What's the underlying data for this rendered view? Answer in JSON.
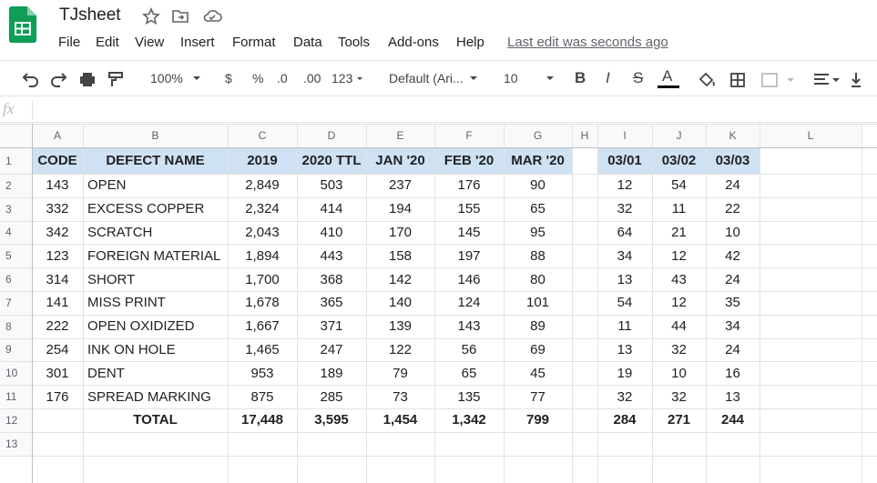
{
  "header": {
    "title": "TJsheet",
    "menu": [
      "File",
      "Edit",
      "View",
      "Insert",
      "Format",
      "Data",
      "Tools",
      "Add-ons",
      "Help"
    ],
    "last_edit": "Last edit was seconds ago"
  },
  "toolbar": {
    "zoom": "100%",
    "currency": "$",
    "percent": "%",
    "decrease_decimal": ".0",
    "increase_decimal": ".00",
    "number_format": "123",
    "font": "Default (Ari...",
    "font_size": "10",
    "bold": "B",
    "italic": "I",
    "strikethrough": "S",
    "text_color": "A"
  },
  "formula_bar": {
    "label": "fx"
  },
  "sheet": {
    "columns": [
      "A",
      "B",
      "C",
      "D",
      "E",
      "F",
      "G",
      "H",
      "I",
      "J",
      "K",
      "L"
    ],
    "row_numbers": [
      1,
      2,
      3,
      4,
      5,
      6,
      7,
      8,
      9,
      10,
      11,
      12,
      13
    ]
  },
  "table": {
    "header": [
      "CODE",
      "DEFECT NAME",
      "2019",
      "2020 TTL",
      "JAN '20",
      "FEB '20",
      "MAR '20",
      "03/01",
      "03/02",
      "03/03"
    ],
    "rows": [
      [
        "143",
        "OPEN",
        "2,849",
        "503",
        "237",
        "176",
        "90",
        "12",
        "54",
        "24"
      ],
      [
        "332",
        "EXCESS COPPER",
        "2,324",
        "414",
        "194",
        "155",
        "65",
        "32",
        "11",
        "22"
      ],
      [
        "342",
        "SCRATCH",
        "2,043",
        "410",
        "170",
        "145",
        "95",
        "64",
        "21",
        "10"
      ],
      [
        "123",
        "FOREIGN MATERIAL",
        "1,894",
        "443",
        "158",
        "197",
        "88",
        "34",
        "12",
        "42"
      ],
      [
        "314",
        "SHORT",
        "1,700",
        "368",
        "142",
        "146",
        "80",
        "13",
        "43",
        "24"
      ],
      [
        "141",
        "MISS PRINT",
        "1,678",
        "365",
        "140",
        "124",
        "101",
        "54",
        "12",
        "35"
      ],
      [
        "222",
        "OPEN OXIDIZED",
        "1,667",
        "371",
        "139",
        "143",
        "89",
        "11",
        "44",
        "34"
      ],
      [
        "254",
        "INK ON HOLE",
        "1,465",
        "247",
        "122",
        "56",
        "69",
        "13",
        "32",
        "24"
      ],
      [
        "301",
        "DENT",
        "953",
        "189",
        "79",
        "65",
        "45",
        "19",
        "10",
        "16"
      ],
      [
        "176",
        "SPREAD MARKING",
        "875",
        "285",
        "73",
        "135",
        "77",
        "32",
        "32",
        "13"
      ]
    ],
    "totals": {
      "label": "TOTAL",
      "values": [
        "17,448",
        "3,595",
        "1,454",
        "1,342",
        "799",
        "284",
        "271",
        "244"
      ]
    }
  }
}
